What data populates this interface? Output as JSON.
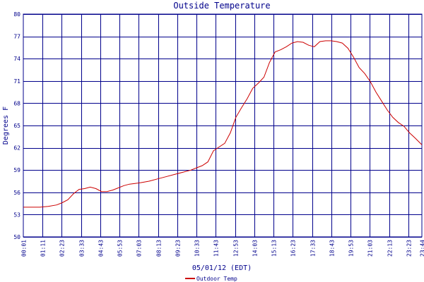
{
  "chart_data": {
    "type": "line",
    "title": "Outside Temperature",
    "xlabel": "05/01/12 (EDT)",
    "ylabel": "Degrees F",
    "ylim": [
      50,
      80
    ],
    "yticks": [
      50,
      53,
      56,
      59,
      62,
      65,
      68,
      71,
      74,
      77,
      80
    ],
    "xticks": [
      "00:01",
      "01:11",
      "02:23",
      "03:33",
      "04:43",
      "05:53",
      "07:03",
      "08:13",
      "09:23",
      "10:33",
      "11:43",
      "12:53",
      "14:03",
      "15:13",
      "16:23",
      "17:33",
      "18:43",
      "19:53",
      "21:03",
      "22:13",
      "23:23",
      "23:44"
    ],
    "grid": true,
    "legend": "bottom-left",
    "colors": {
      "line": "#cc0000",
      "grid": "#00008b",
      "text": "#00008b"
    },
    "series": [
      {
        "name": "Outdoor Temp",
        "x": [
          "00:01",
          "00:30",
          "01:00",
          "01:30",
          "02:00",
          "02:20",
          "02:40",
          "03:00",
          "03:20",
          "03:40",
          "04:00",
          "04:20",
          "04:40",
          "05:00",
          "05:20",
          "05:40",
          "06:00",
          "06:20",
          "06:40",
          "07:00",
          "07:30",
          "08:00",
          "08:30",
          "09:00",
          "09:30",
          "10:00",
          "10:20",
          "10:40",
          "11:00",
          "11:20",
          "11:40",
          "12:00",
          "12:20",
          "12:40",
          "13:00",
          "13:20",
          "13:40",
          "14:00",
          "14:20",
          "14:40",
          "15:00",
          "15:20",
          "15:40",
          "16:00",
          "16:20",
          "16:40",
          "17:00",
          "17:20",
          "17:40",
          "18:00",
          "18:20",
          "18:40",
          "19:00",
          "19:20",
          "19:40",
          "20:00",
          "20:20",
          "20:40",
          "21:00",
          "21:20",
          "21:40",
          "22:00",
          "22:20",
          "22:40",
          "23:00",
          "23:20",
          "23:44"
        ],
        "y": [
          54.0,
          54.0,
          54.0,
          54.1,
          54.3,
          54.6,
          55.0,
          55.8,
          56.4,
          56.5,
          56.7,
          56.5,
          56.1,
          56.1,
          56.3,
          56.6,
          56.9,
          57.1,
          57.2,
          57.3,
          57.5,
          57.8,
          58.1,
          58.4,
          58.7,
          59.0,
          59.3,
          59.6,
          60.1,
          61.6,
          62.1,
          62.6,
          64.0,
          66.1,
          67.4,
          68.6,
          70.0,
          70.7,
          71.5,
          73.5,
          74.9,
          75.2,
          75.6,
          76.1,
          76.3,
          76.2,
          75.8,
          75.6,
          76.3,
          76.4,
          76.4,
          76.3,
          76.1,
          75.4,
          74.2,
          72.8,
          72.0,
          70.9,
          69.5,
          68.3,
          67.1,
          66.1,
          65.4,
          64.9,
          64.0,
          63.3,
          62.4
        ]
      }
    ]
  }
}
